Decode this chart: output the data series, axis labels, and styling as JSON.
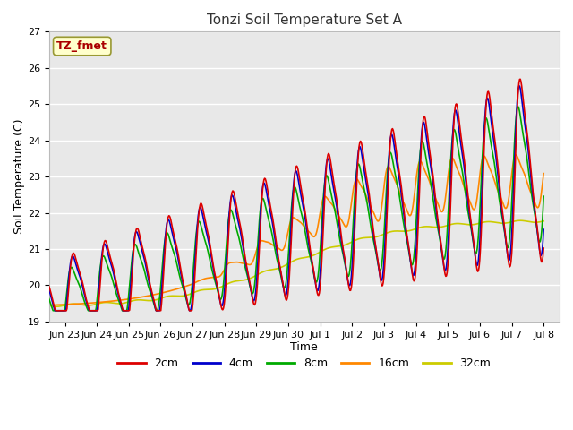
{
  "title": "Tonzi Soil Temperature Set A",
  "xlabel": "Time",
  "ylabel": "Soil Temperature (C)",
  "annotation": "TZ_fmet",
  "annotation_color": "#aa0000",
  "annotation_bg": "#ffffcc",
  "annotation_border": "#999933",
  "ylim": [
    19.0,
    27.0
  ],
  "yticks": [
    19.0,
    20.0,
    21.0,
    22.0,
    23.0,
    24.0,
    25.0,
    26.0,
    27.0
  ],
  "bg_color": "#e8e8e8",
  "grid_color": "#ffffff",
  "line_colors": {
    "2cm": "#dd0000",
    "4cm": "#0000cc",
    "8cm": "#00aa00",
    "16cm": "#ff8800",
    "32cm": "#cccc00"
  },
  "xtick_labels": [
    "Jun 23",
    "Jun 24",
    "Jun 25",
    "Jun 26",
    "Jun 27",
    "Jun 28",
    "Jun 29",
    "Jun 30",
    "Jul 1",
    "Jul 2",
    "Jul 3",
    "Jul 4",
    "Jul 5",
    "Jul 6",
    "Jul 7",
    "Jul 8"
  ]
}
